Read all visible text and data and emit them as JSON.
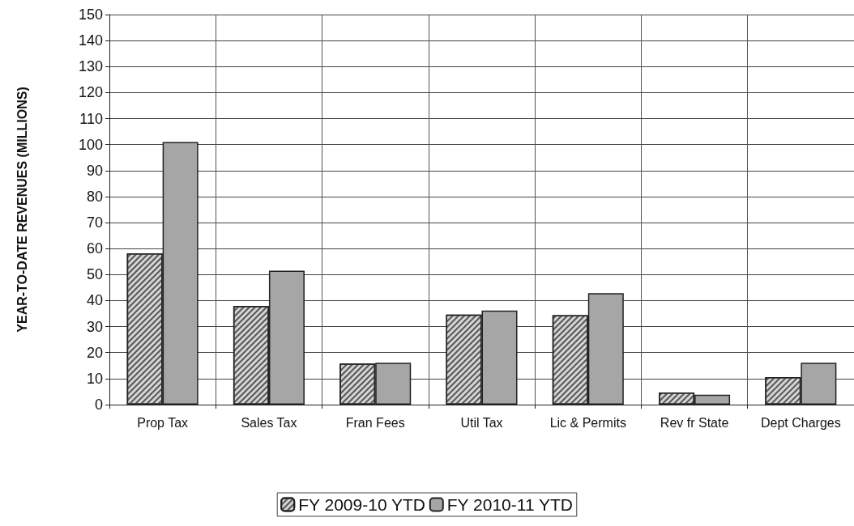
{
  "chart_data": {
    "type": "bar",
    "ylabel": "YEAR-TO-DATE REVENUES (MILLIONS)",
    "categories": [
      "Prop Tax",
      "Sales Tax",
      "Fran Fees",
      "Util Tax",
      "Lic & Permits",
      "Rev fr State",
      "Dept Charges"
    ],
    "series": [
      {
        "name": "FY 2009-10 YTD",
        "color": "#d4d4d4",
        "values": [
          58.2,
          38.0,
          15.8,
          34.6,
          34.4,
          4.7,
          10.6
        ]
      },
      {
        "name": "FY 2010-11 YTD",
        "color": "#a6a6a6",
        "values": [
          101,
          51.5,
          16.1,
          36.2,
          42.9,
          3.8,
          16.1
        ]
      }
    ],
    "ylim": [
      0,
      150
    ],
    "yticks": [
      0,
      10,
      20,
      30,
      40,
      50,
      60,
      70,
      80,
      90,
      100,
      110,
      120,
      130,
      140,
      150
    ],
    "grid": true,
    "legend": "bottom"
  }
}
